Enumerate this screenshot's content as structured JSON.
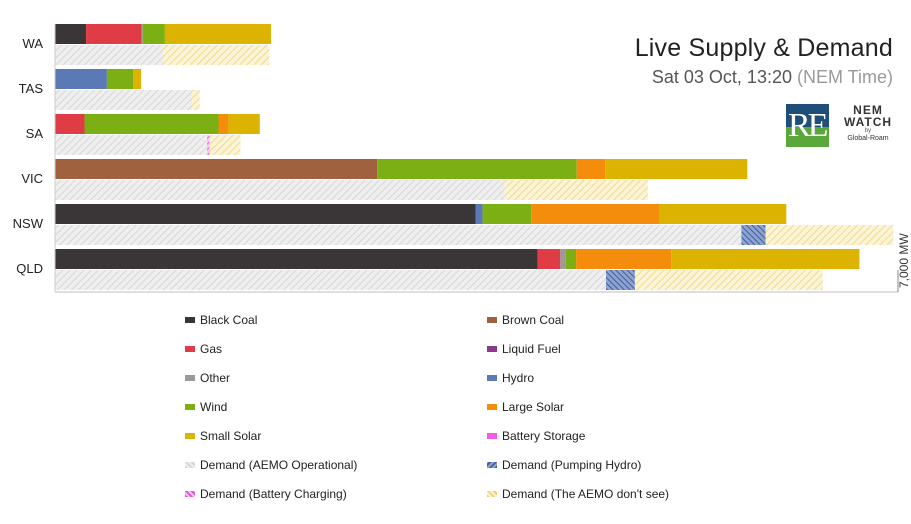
{
  "header": {
    "title": "Live Supply & Demand",
    "subtitle_date": "Sat 03 Oct, 13:20",
    "subtitle_suffix": "(NEM Time)"
  },
  "logos": {
    "re_text": "RE",
    "nemwatch_line1": "NEM",
    "nemwatch_line2": "WATCH",
    "nemwatch_by": "by",
    "nemwatch_owner": "Global-Roam"
  },
  "colors": {
    "Black Coal": "#3a3638",
    "Brown Coal": "#a0623e",
    "Gas": "#e03c45",
    "Liquid Fuel": "#8a3a8e",
    "Other": "#9a9a9a",
    "Hydro": "#5b79b5",
    "Wind": "#7caf14",
    "Large Solar": "#f48c0c",
    "Small Solar": "#dbb300",
    "Battery Storage": "#f25ced",
    "Demand (AEMO Operational)": "#d4d4d4",
    "Demand (Pumping Hydro)": "#3f5f9e",
    "Demand (Battery Charging)": "#e04fd8",
    "Demand (The AEMO don't see)": "#ecd37a"
  },
  "chart_data": {
    "type": "bar",
    "orientation": "horizontal",
    "stacked": true,
    "title": "Live Supply & Demand",
    "categories": [
      "WA",
      "TAS",
      "SA",
      "VIC",
      "NSW",
      "QLD"
    ],
    "scale_label": "7,000 MW",
    "scale_max_mw": 7000,
    "supply": [
      {
        "region": "WA",
        "segments": [
          {
            "type": "Black Coal",
            "mw": 258
          },
          {
            "type": "Gas",
            "mw": 462
          },
          {
            "type": "Other",
            "mw": 8
          },
          {
            "type": "Wind",
            "mw": 184
          },
          {
            "type": "Small Solar",
            "mw": 882
          }
        ]
      },
      {
        "region": "TAS",
        "segments": [
          {
            "type": "Hydro",
            "mw": 431
          },
          {
            "type": "Wind",
            "mw": 219
          },
          {
            "type": "Small Solar",
            "mw": 65
          }
        ]
      },
      {
        "region": "SA",
        "segments": [
          {
            "type": "Gas",
            "mw": 245
          },
          {
            "type": "Wind",
            "mw": 1113
          },
          {
            "type": "Large Solar",
            "mw": 82
          },
          {
            "type": "Small Solar",
            "mw": 261
          }
        ]
      },
      {
        "region": "VIC",
        "segments": [
          {
            "type": "Brown Coal",
            "mw": 2676
          },
          {
            "type": "Wind",
            "mw": 1656
          },
          {
            "type": "Large Solar",
            "mw": 237
          },
          {
            "type": "Small Solar",
            "mw": 1180
          }
        ]
      },
      {
        "region": "NSW",
        "segments": [
          {
            "type": "Black Coal",
            "mw": 3494
          },
          {
            "type": "Hydro",
            "mw": 57
          },
          {
            "type": "Wind",
            "mw": 408
          },
          {
            "type": "Large Solar",
            "mw": 1056
          },
          {
            "type": "Small Solar",
            "mw": 1058
          }
        ]
      },
      {
        "region": "QLD",
        "segments": [
          {
            "type": "Black Coal",
            "mw": 4008
          },
          {
            "type": "Gas",
            "mw": 188
          },
          {
            "type": "Other",
            "mw": 41
          },
          {
            "type": "Wind",
            "mw": 90
          },
          {
            "type": "Large Solar",
            "mw": 790
          },
          {
            "type": "Small Solar",
            "mw": 1563
          }
        ]
      }
    ],
    "demand": [
      {
        "region": "WA",
        "segments": [
          {
            "type": "Demand (AEMO Operational)",
            "mw": 900
          },
          {
            "type": "Demand (The AEMO don't see)",
            "mw": 880
          }
        ]
      },
      {
        "region": "TAS",
        "segments": [
          {
            "type": "Demand (AEMO Operational)",
            "mw": 1138
          },
          {
            "type": "Demand (The AEMO don't see)",
            "mw": 65
          }
        ]
      },
      {
        "region": "SA",
        "segments": [
          {
            "type": "Demand (AEMO Operational)",
            "mw": 1263
          },
          {
            "type": "Demand (Battery Charging)",
            "mw": 20
          },
          {
            "type": "Demand (The AEMO don't see)",
            "mw": 257
          }
        ]
      },
      {
        "region": "VIC",
        "segments": [
          {
            "type": "Demand (AEMO Operational)",
            "mw": 3734
          },
          {
            "type": "Demand (The AEMO don't see)",
            "mw": 1188
          }
        ]
      },
      {
        "region": "NSW",
        "segments": [
          {
            "type": "Demand (AEMO Operational)",
            "mw": 5700
          },
          {
            "type": "Demand (Pumping Hydro)",
            "mw": 200
          },
          {
            "type": "Demand (The AEMO don't see)",
            "mw": 1062
          }
        ]
      },
      {
        "region": "QLD",
        "segments": [
          {
            "type": "Demand (AEMO Operational)",
            "mw": 4575
          },
          {
            "type": "Demand (Pumping Hydro)",
            "mw": 240
          },
          {
            "type": "Demand (The AEMO don't see)",
            "mw": 1560
          }
        ]
      }
    ],
    "legend": [
      "Black Coal",
      "Brown Coal",
      "Gas",
      "Liquid Fuel",
      "Other",
      "Hydro",
      "Wind",
      "Large Solar",
      "Small Solar",
      "Battery Storage",
      "Demand (AEMO Operational)",
      "Demand (Pumping Hydro)",
      "Demand (Battery Charging)",
      "Demand (The AEMO don't see)"
    ]
  }
}
